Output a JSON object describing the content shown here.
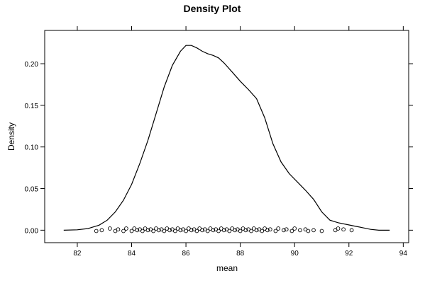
{
  "chart_data": {
    "type": "line",
    "title": "Density Plot",
    "xlabel": "mean",
    "ylabel": "Density",
    "xlim": [
      80.8,
      94.2
    ],
    "ylim": [
      -0.015,
      0.24
    ],
    "xticks": [
      82,
      84,
      86,
      88,
      90,
      92,
      94
    ],
    "xtick_labels": [
      "82",
      "84",
      "86",
      "88",
      "90",
      "92",
      "94"
    ],
    "yticks": [
      0.0,
      0.05,
      0.1,
      0.15,
      0.2
    ],
    "ytick_labels": [
      "0.00",
      "0.05",
      "0.10",
      "0.15",
      "0.20"
    ],
    "grid": false,
    "legend": "none",
    "series": [
      {
        "x": [
          81.5,
          82.0,
          82.4,
          82.8,
          83.1,
          83.4,
          83.7,
          84.0,
          84.3,
          84.6,
          84.9,
          85.2,
          85.5,
          85.8,
          86.0,
          86.2,
          86.4,
          86.6,
          86.8,
          87.0,
          87.2,
          87.4,
          87.7,
          88.0,
          88.3,
          88.6,
          88.9,
          89.2,
          89.5,
          89.8,
          90.1,
          90.4,
          90.7,
          91.0,
          91.3,
          91.6,
          91.9,
          92.2,
          92.5,
          92.8,
          93.1,
          93.5
        ],
        "y": [
          0.0,
          0.0005,
          0.002,
          0.006,
          0.012,
          0.022,
          0.036,
          0.055,
          0.08,
          0.108,
          0.14,
          0.172,
          0.198,
          0.215,
          0.222,
          0.222,
          0.219,
          0.215,
          0.212,
          0.21,
          0.207,
          0.201,
          0.19,
          0.179,
          0.169,
          0.158,
          0.135,
          0.104,
          0.082,
          0.068,
          0.058,
          0.048,
          0.037,
          0.022,
          0.012,
          0.009,
          0.007,
          0.005,
          0.003,
          0.001,
          0.0,
          0.0
        ]
      }
    ],
    "rug_points": [
      [
        82.7,
        -0.001
      ],
      [
        82.9,
        0.0
      ],
      [
        83.2,
        0.002
      ],
      [
        83.4,
        -0.001
      ],
      [
        83.5,
        0.001
      ],
      [
        83.7,
        -0.001
      ],
      [
        83.8,
        0.002
      ],
      [
        84.0,
        -0.001
      ],
      [
        84.1,
        0.002
      ],
      [
        84.2,
        0.0
      ],
      [
        84.3,
        0.001
      ],
      [
        84.4,
        -0.001
      ],
      [
        84.5,
        0.002
      ],
      [
        84.6,
        0.0
      ],
      [
        84.7,
        0.001
      ],
      [
        84.8,
        -0.001
      ],
      [
        84.9,
        0.002
      ],
      [
        85.0,
        0.0
      ],
      [
        85.1,
        0.001
      ],
      [
        85.2,
        -0.001
      ],
      [
        85.3,
        0.002
      ],
      [
        85.4,
        0.0
      ],
      [
        85.5,
        0.001
      ],
      [
        85.6,
        -0.001
      ],
      [
        85.7,
        0.002
      ],
      [
        85.8,
        0.0
      ],
      [
        85.9,
        0.001
      ],
      [
        86.0,
        -0.001
      ],
      [
        86.1,
        0.002
      ],
      [
        86.2,
        0.0
      ],
      [
        86.3,
        0.001
      ],
      [
        86.4,
        -0.001
      ],
      [
        86.5,
        0.002
      ],
      [
        86.6,
        0.0
      ],
      [
        86.7,
        0.001
      ],
      [
        86.8,
        -0.001
      ],
      [
        86.9,
        0.002
      ],
      [
        87.0,
        0.0
      ],
      [
        87.1,
        0.001
      ],
      [
        87.2,
        -0.001
      ],
      [
        87.3,
        0.002
      ],
      [
        87.4,
        0.0
      ],
      [
        87.5,
        0.001
      ],
      [
        87.6,
        -0.001
      ],
      [
        87.7,
        0.002
      ],
      [
        87.8,
        0.0
      ],
      [
        87.9,
        0.001
      ],
      [
        88.0,
        -0.001
      ],
      [
        88.1,
        0.002
      ],
      [
        88.2,
        0.0
      ],
      [
        88.3,
        0.001
      ],
      [
        88.4,
        -0.001
      ],
      [
        88.5,
        0.002
      ],
      [
        88.6,
        0.0
      ],
      [
        88.7,
        0.001
      ],
      [
        88.8,
        -0.001
      ],
      [
        88.9,
        0.002
      ],
      [
        89.0,
        0.0
      ],
      [
        89.1,
        0.001
      ],
      [
        89.3,
        -0.001
      ],
      [
        89.4,
        0.002
      ],
      [
        89.6,
        0.0
      ],
      [
        89.7,
        0.001
      ],
      [
        89.9,
        -0.001
      ],
      [
        90.0,
        0.002
      ],
      [
        90.2,
        0.0
      ],
      [
        90.4,
        0.001
      ],
      [
        90.5,
        -0.001
      ],
      [
        90.7,
        0.0
      ],
      [
        91.0,
        -0.001
      ],
      [
        91.5,
        0.0
      ],
      [
        91.6,
        0.002
      ],
      [
        91.8,
        0.001
      ],
      [
        92.1,
        0.0
      ]
    ]
  }
}
